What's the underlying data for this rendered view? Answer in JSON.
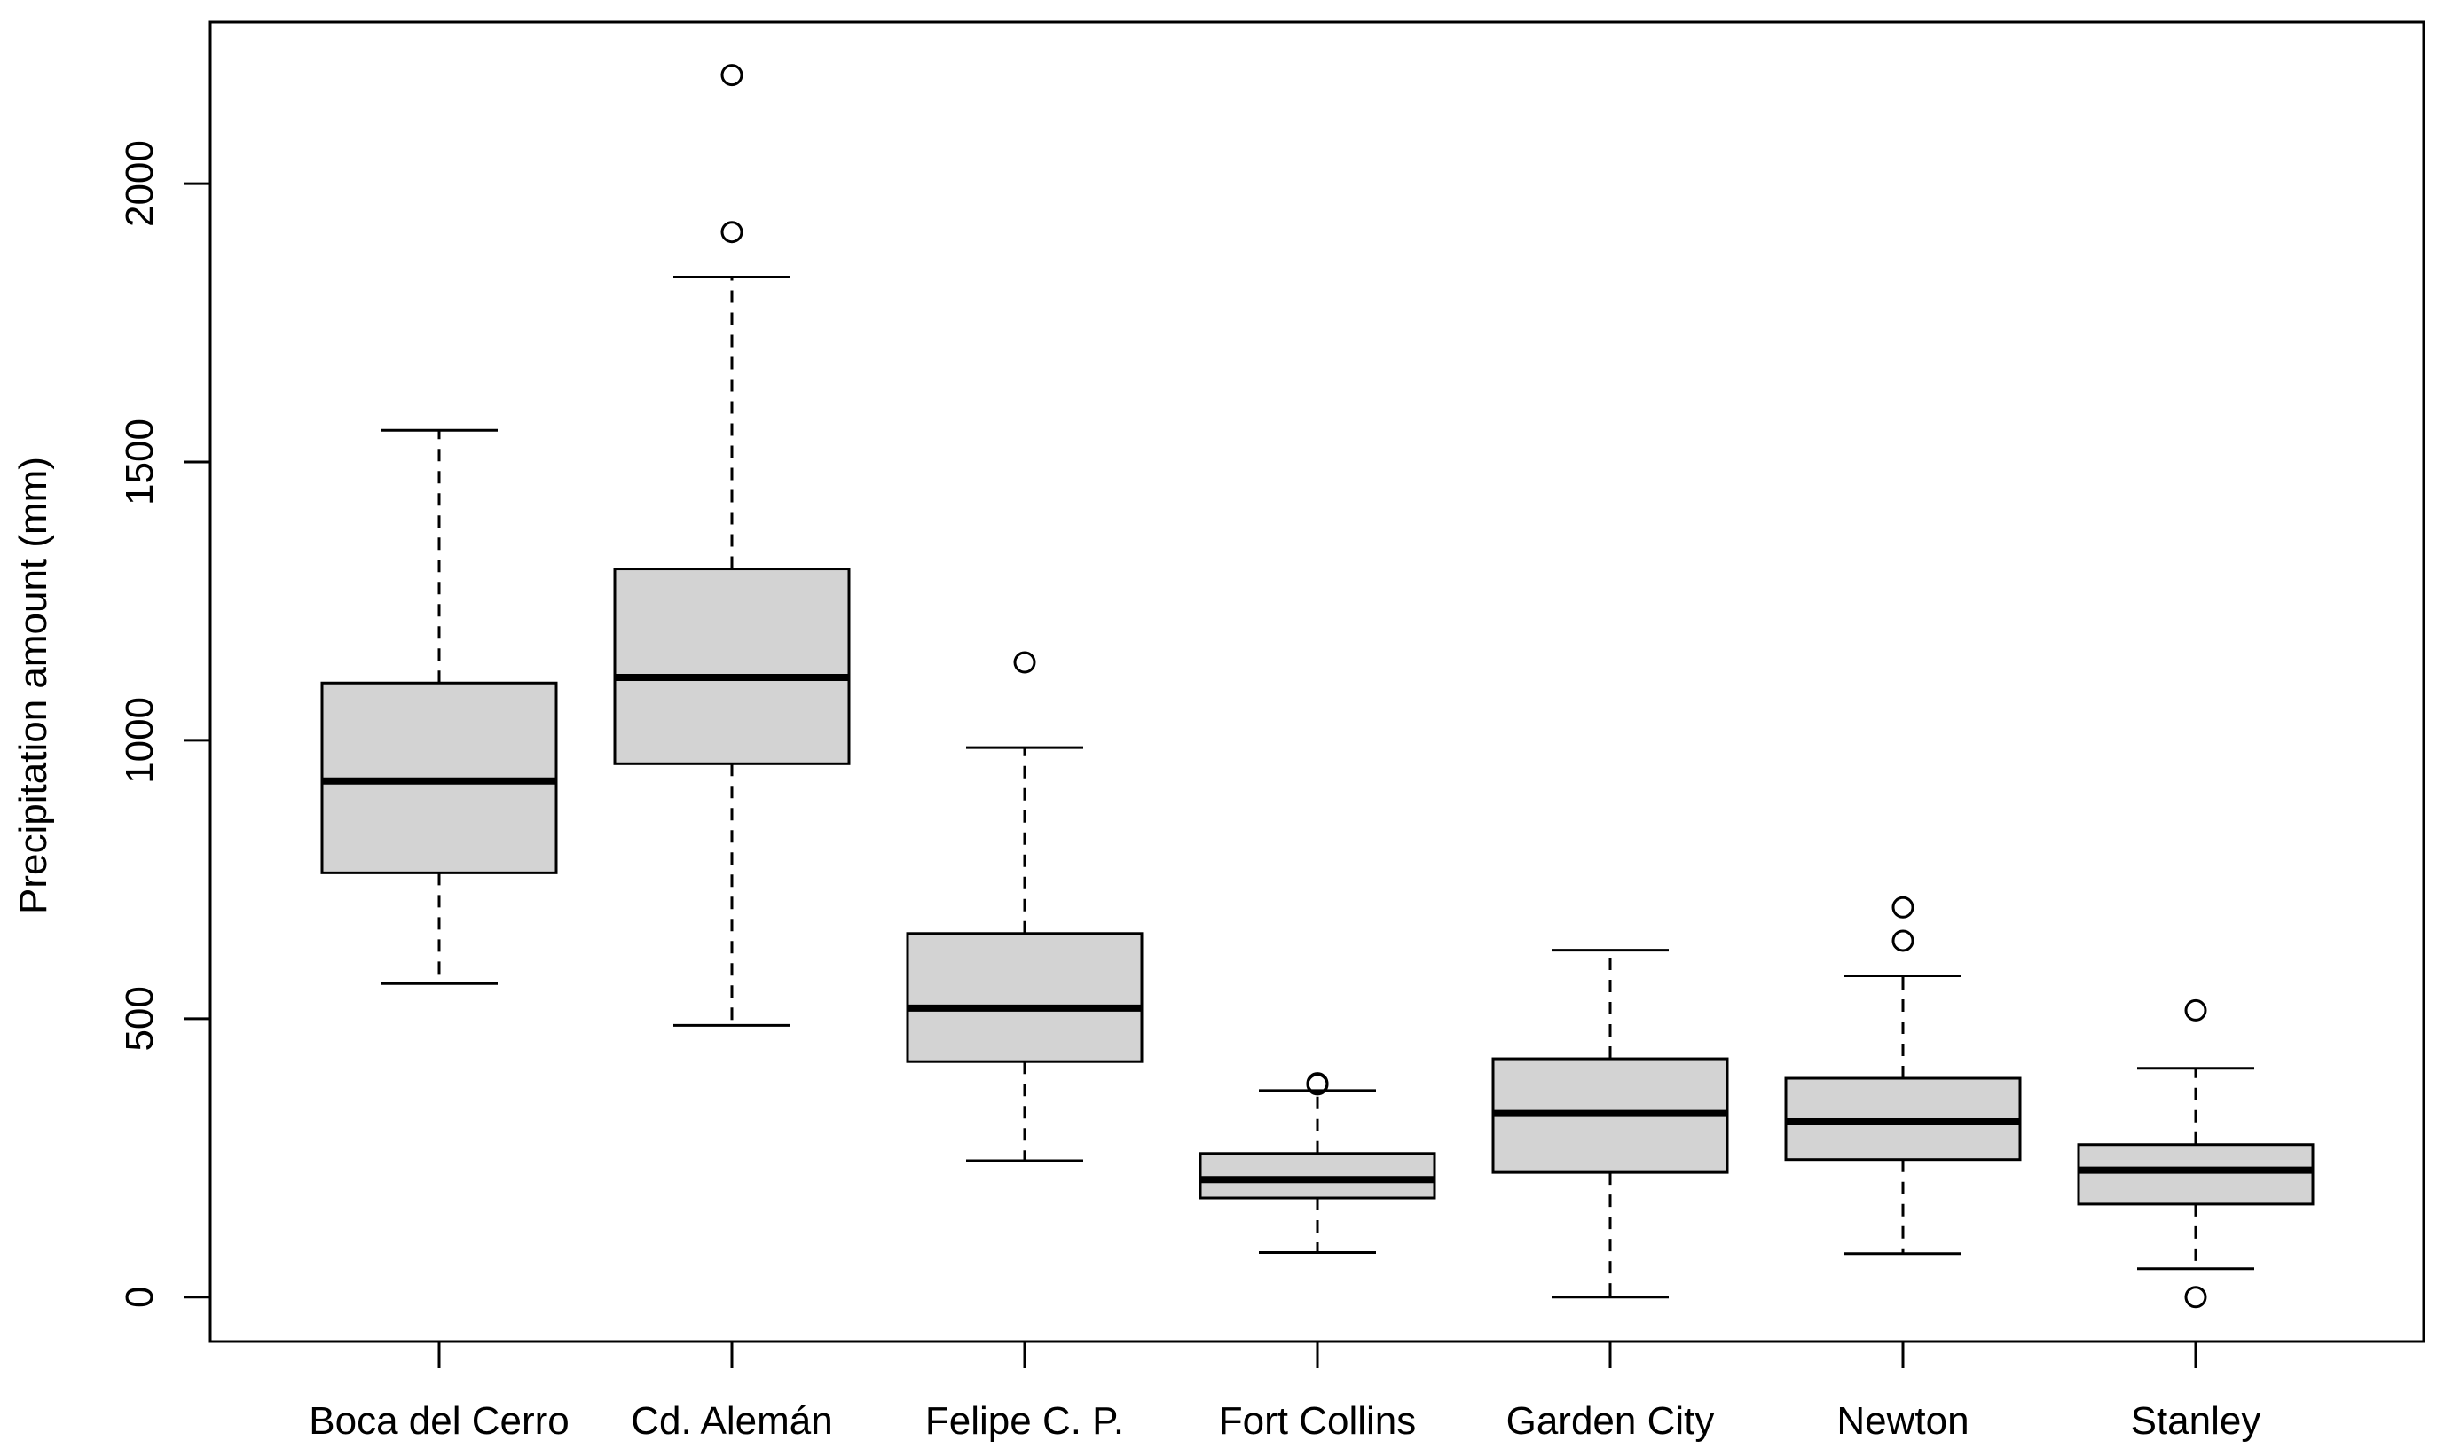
{
  "chart_data": {
    "type": "boxplot",
    "title": "",
    "xlabel": "",
    "ylabel": "Precipitation amount (mm)",
    "ylim": [
      -80,
      2290
    ],
    "yticks": [
      0,
      500,
      1000,
      1500,
      2000
    ],
    "grid": false,
    "legend": "none",
    "categories": [
      "Boca del Cerro",
      "Cd. Alemán",
      "Felipe C. P.",
      "Fort Collins",
      "Garden City",
      "Newton",
      "Stanley"
    ],
    "boxes": [
      {
        "name": "Boca del Cerro",
        "whisker_low": 563,
        "q1": 762,
        "median": 927,
        "q3": 1103,
        "whisker_high": 1557,
        "outliers": []
      },
      {
        "name": "Cd. Alemán",
        "whisker_low": 488,
        "q1": 958,
        "median": 1113,
        "q3": 1308,
        "whisker_high": 1832,
        "outliers": [
          1913,
          2195
        ]
      },
      {
        "name": "Felipe C. P.",
        "whisker_low": 245,
        "q1": 423,
        "median": 519,
        "q3": 653,
        "whisker_high": 987,
        "outliers": [
          1140
        ]
      },
      {
        "name": "Fort Collins",
        "whisker_low": 80,
        "q1": 178,
        "median": 211,
        "q3": 258,
        "whisker_high": 371,
        "outliers": [
          382,
          384
        ]
      },
      {
        "name": "Garden City",
        "whisker_low": 0,
        "q1": 224,
        "median": 330,
        "q3": 428,
        "whisker_high": 623,
        "outliers": []
      },
      {
        "name": "Newton",
        "whisker_low": 78,
        "q1": 247,
        "median": 315,
        "q3": 393,
        "whisker_high": 577,
        "outliers": [
          640,
          700
        ]
      },
      {
        "name": "Stanley",
        "whisker_low": 51,
        "q1": 167,
        "median": 228,
        "q3": 274,
        "whisker_high": 411,
        "outliers": [
          0,
          515
        ]
      }
    ]
  }
}
